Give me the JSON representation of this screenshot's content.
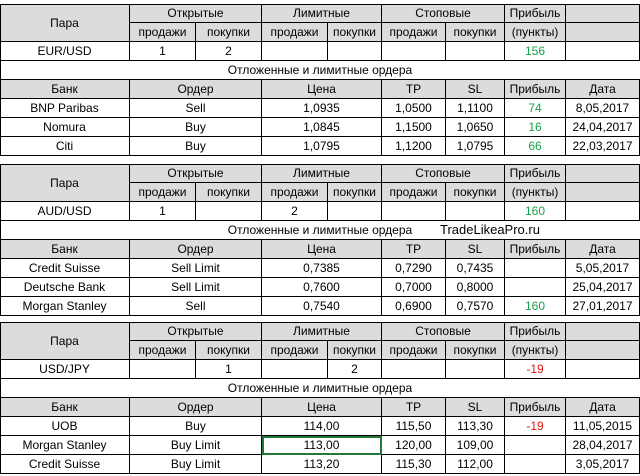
{
  "headers": {
    "pair": "Пара",
    "open": "Открытые",
    "limit": "Лимитные",
    "stop": "Стоповые",
    "profit": "Прибыль",
    "sell": "продажи",
    "buy": "покупки",
    "points": "(пункты)",
    "pending_title": "Отложенные и лимитные ордера",
    "bank": "Банк",
    "order": "Ордер",
    "price": "Цена",
    "tp": "TP",
    "sl": "SL",
    "date": "Дата"
  },
  "watermark": "TradeLikeaPro.ru",
  "sections": [
    {
      "pair": "EUR/USD",
      "open_sell": "1",
      "open_buy": "2",
      "limit_sell": "",
      "limit_buy": "",
      "stop_sell": "",
      "stop_buy": "",
      "profit": "156",
      "orders": [
        {
          "bank": "BNP Paribas",
          "order": "Sell",
          "price": "1,0935",
          "tp": "1,0500",
          "sl": "1,1100",
          "profit": "74",
          "date": "8,05,2017"
        },
        {
          "bank": "Nomura",
          "order": "Buy",
          "price": "1,0845",
          "tp": "1,1500",
          "sl": "1,0650",
          "profit": "16",
          "date": "24,04,2017"
        },
        {
          "bank": "Citi",
          "order": "Buy",
          "price": "1,0795",
          "tp": "1,1200",
          "sl": "1,0795",
          "profit": "66",
          "date": "22,03,2017"
        }
      ]
    },
    {
      "pair": "AUD/USD",
      "open_sell": "1",
      "open_buy": "",
      "limit_sell": "2",
      "limit_buy": "",
      "stop_sell": "",
      "stop_buy": "",
      "profit": "160",
      "orders": [
        {
          "bank": "Credit Suisse",
          "order": "Sell Limit",
          "price": "0,7385",
          "tp": "0,7290",
          "sl": "0,7435",
          "profit": "",
          "date": "5,05,2017"
        },
        {
          "bank": "Deutsche Bank",
          "order": "Sell Limit",
          "price": "0,7600",
          "tp": "0,7000",
          "sl": "0,8000",
          "profit": "",
          "date": "25,04,2017"
        },
        {
          "bank": "Morgan Stanley",
          "order": "Sell",
          "price": "0,7540",
          "tp": "0,6900",
          "sl": "0,7570",
          "profit": "160",
          "date": "27,01,2017"
        }
      ]
    },
    {
      "pair": "USD/JPY",
      "open_sell": "",
      "open_buy": "1",
      "limit_sell": "",
      "limit_buy": "2",
      "stop_sell": "",
      "stop_buy": "",
      "profit": "-19",
      "orders": [
        {
          "bank": "UOB",
          "order": "Buy",
          "price": "114,00",
          "tp": "115,50",
          "sl": "113,30",
          "profit": "-19",
          "date": "11,05,2015"
        },
        {
          "bank": "Morgan Stanley",
          "order": "Buy Limit",
          "price": "113,00",
          "tp": "120,00",
          "sl": "109,00",
          "profit": "",
          "date": "28,04,2017"
        },
        {
          "bank": "Credit Suisse",
          "order": "Buy Limit",
          "price": "113,20",
          "tp": "115,30",
          "sl": "112,00",
          "profit": "",
          "date": "3,05,2017"
        }
      ]
    }
  ],
  "colors": {
    "header_bg": "#dcdcdc",
    "positive": "#1aa04a",
    "negative": "#e01515",
    "selection": "#1f7a3a"
  }
}
